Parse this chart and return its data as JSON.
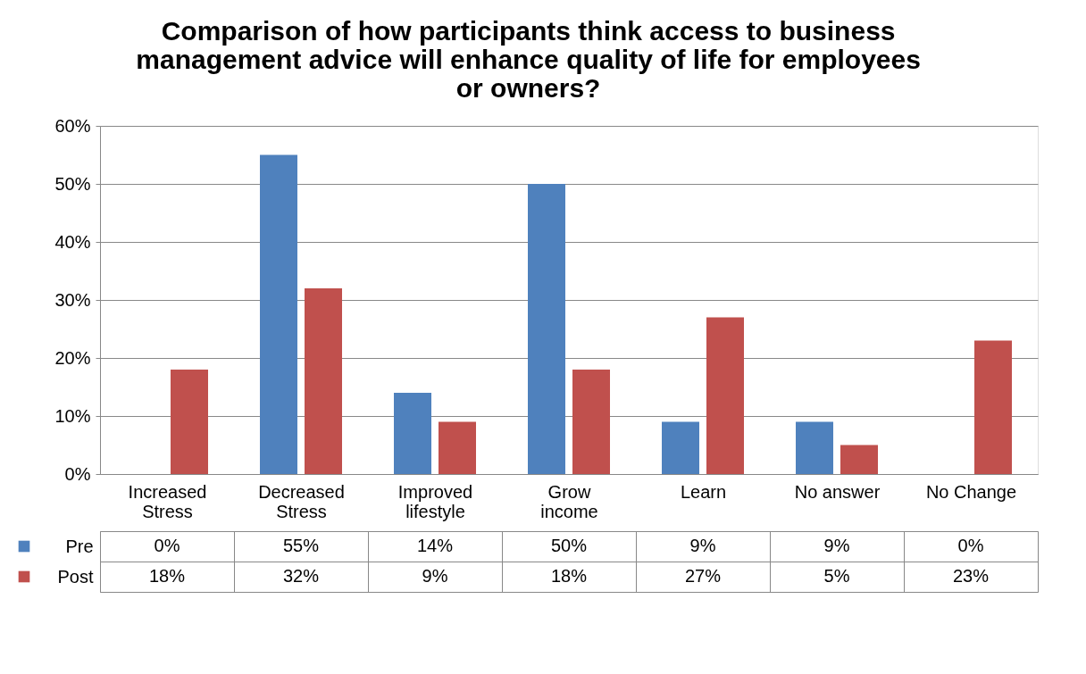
{
  "chart_data": {
    "type": "bar",
    "title": "Comparison of how participants think access to business management advice will enhance quality of life for employees or owners?",
    "categories": [
      "Increased Stress",
      "Decreased Stress",
      "Improved lifestyle",
      "Grow income",
      "Learn",
      "No answer",
      "No Change"
    ],
    "series": [
      {
        "name": "Pre",
        "color": "#4f81bd",
        "values": [
          0,
          55,
          14,
          50,
          9,
          9,
          0
        ],
        "value_labels": [
          "0%",
          "55%",
          "14%",
          "50%",
          "9%",
          "9%",
          "0%"
        ]
      },
      {
        "name": "Post",
        "color": "#c0504d",
        "values": [
          18,
          32,
          9,
          18,
          27,
          5,
          23
        ],
        "value_labels": [
          "18%",
          "32%",
          "9%",
          "18%",
          "27%",
          "5%",
          "23%"
        ]
      }
    ],
    "ylim": [
      0,
      60
    ],
    "yticks": [
      {
        "value": 0,
        "label": "0%"
      },
      {
        "value": 10,
        "label": "10%"
      },
      {
        "value": 20,
        "label": "20%"
      },
      {
        "value": 30,
        "label": "30%"
      },
      {
        "value": 40,
        "label": "40%"
      },
      {
        "value": 50,
        "label": "50%"
      },
      {
        "value": 60,
        "label": "60%"
      }
    ],
    "grid": "y",
    "legend": "bottom left"
  }
}
